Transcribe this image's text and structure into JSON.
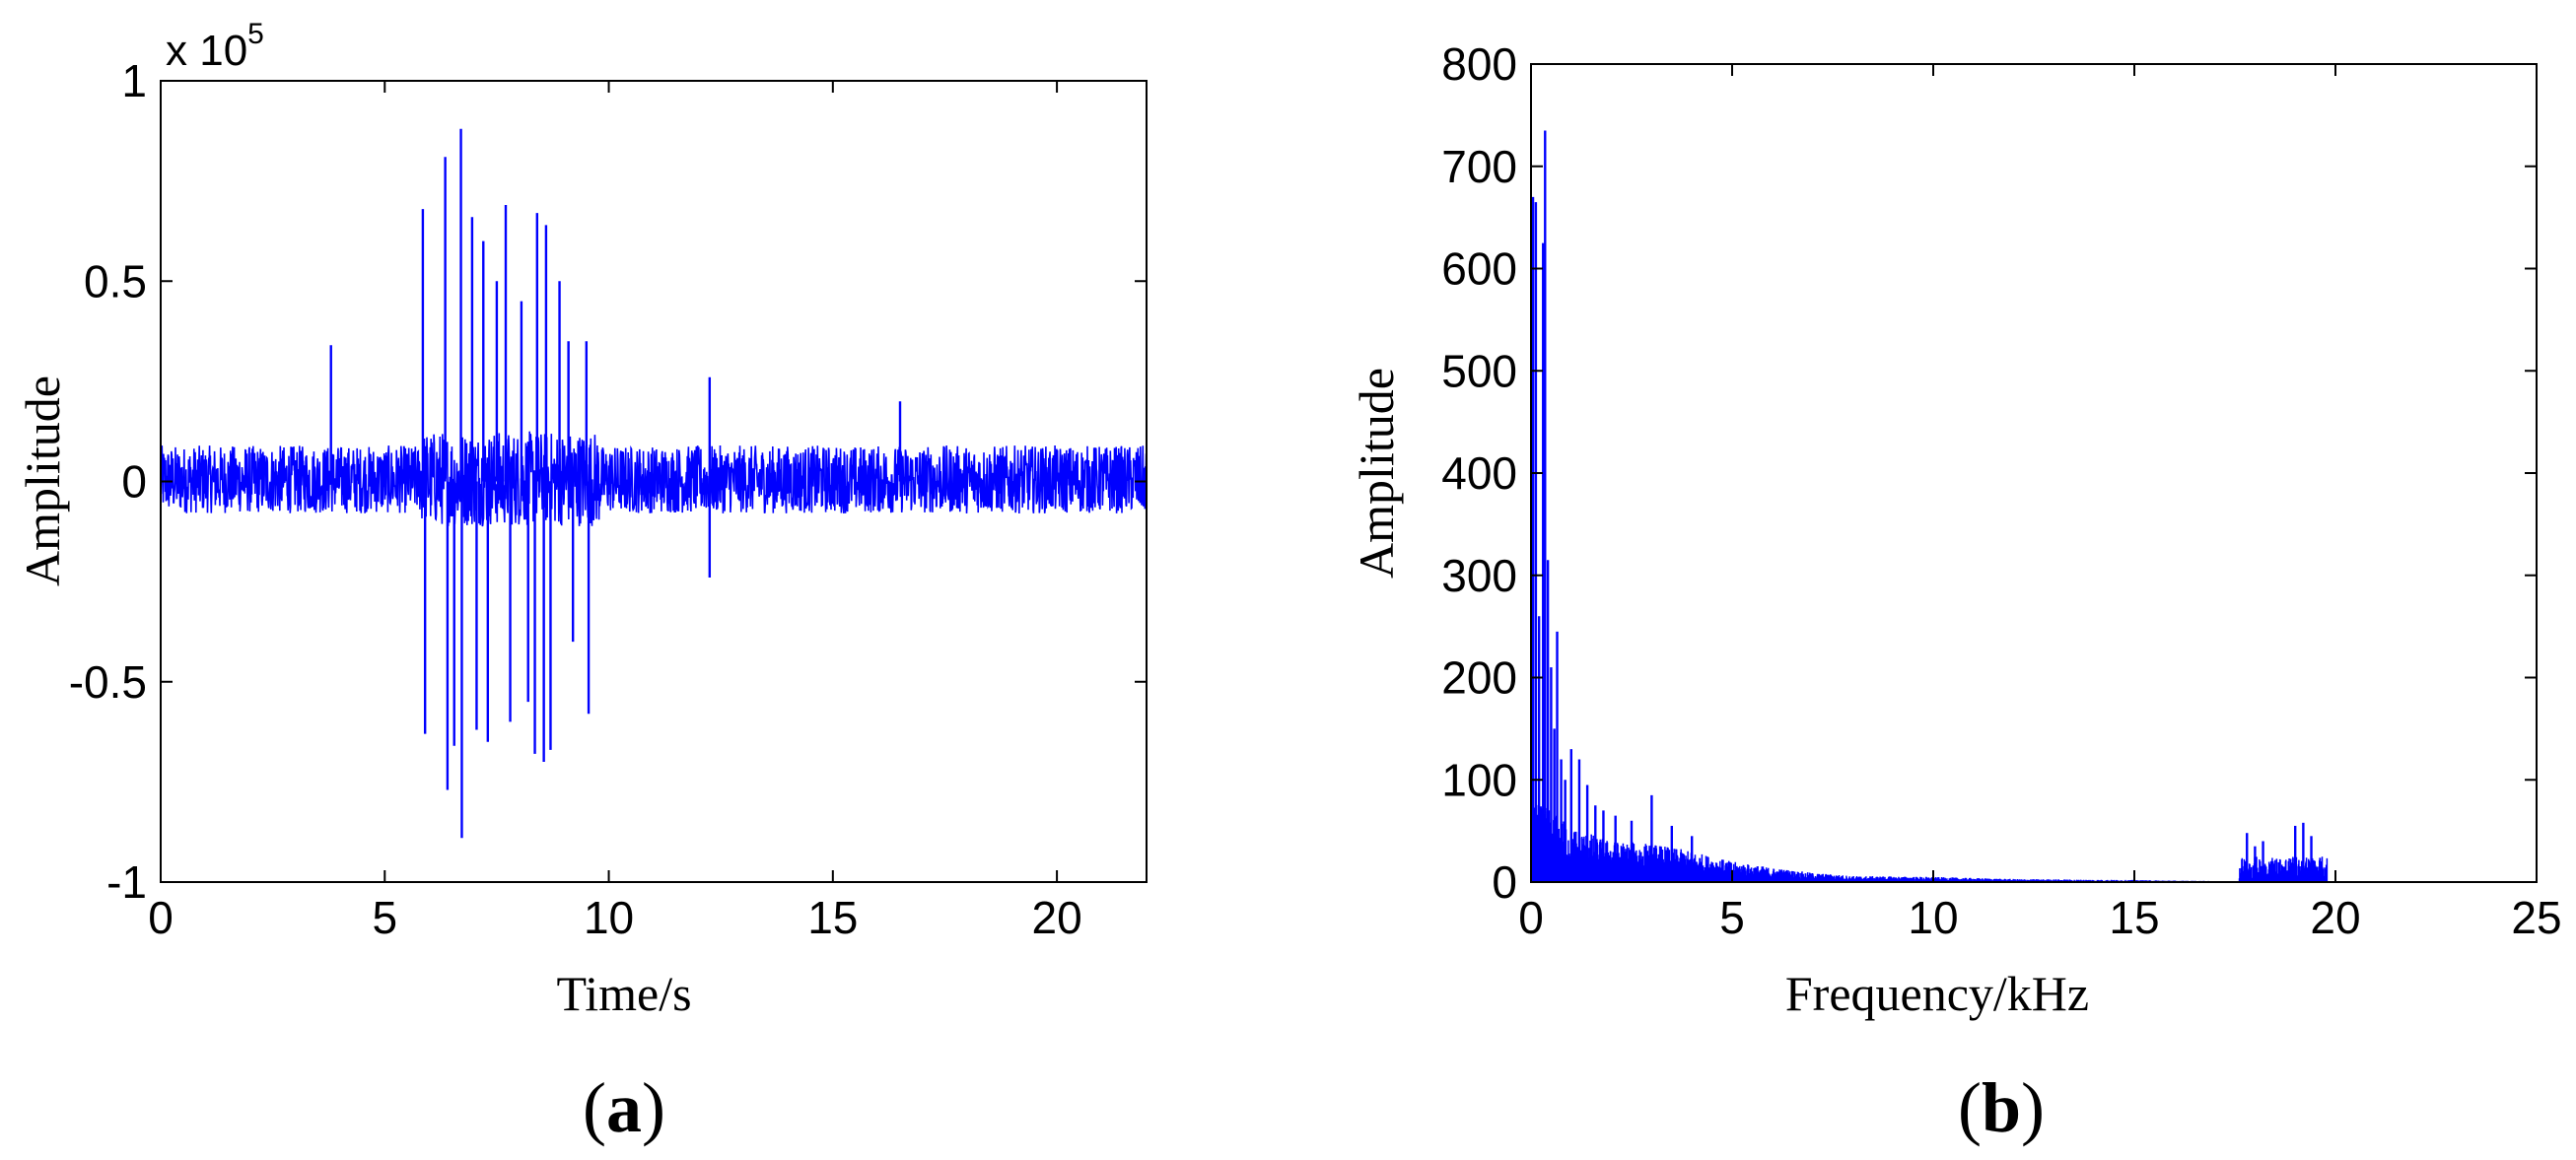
{
  "chart_data": [
    {
      "id": "a",
      "type": "line",
      "panel_label": "a",
      "title": "",
      "xlabel": "Time/s",
      "ylabel": "Amplitude",
      "y_multiplier_label": "x 10",
      "y_multiplier_exponent": "5",
      "xlim": [
        0,
        22
      ],
      "ylim": [
        -1,
        1
      ],
      "xticks": [
        0,
        5,
        10,
        15,
        20
      ],
      "yticks": [
        -1,
        -0.5,
        0,
        0.5,
        1
      ],
      "xtick_labels": [
        "0",
        "5",
        "10",
        "15",
        "20"
      ],
      "ytick_labels": [
        "-1",
        "-0.5",
        "0",
        "0.5",
        "1"
      ],
      "grid": false,
      "color": "#0000ff",
      "series": [
        {
          "noise_band": [
            -0.08,
            0.09
          ],
          "spikes": [
            {
              "x": 3.8,
              "y": 0.34
            },
            {
              "x": 5.85,
              "y": 0.68
            },
            {
              "x": 5.9,
              "y": -0.63
            },
            {
              "x": 6.35,
              "y": 0.81
            },
            {
              "x": 6.4,
              "y": -0.77
            },
            {
              "x": 6.55,
              "y": -0.66
            },
            {
              "x": 6.7,
              "y": 0.88
            },
            {
              "x": 6.72,
              "y": -0.89
            },
            {
              "x": 6.95,
              "y": 0.66
            },
            {
              "x": 7.05,
              "y": -0.62
            },
            {
              "x": 7.2,
              "y": 0.6
            },
            {
              "x": 7.3,
              "y": -0.65
            },
            {
              "x": 7.5,
              "y": 0.5
            },
            {
              "x": 7.7,
              "y": 0.69
            },
            {
              "x": 7.8,
              "y": -0.6
            },
            {
              "x": 8.05,
              "y": 0.45
            },
            {
              "x": 8.2,
              "y": -0.55
            },
            {
              "x": 8.35,
              "y": -0.68
            },
            {
              "x": 8.4,
              "y": 0.67
            },
            {
              "x": 8.55,
              "y": -0.7
            },
            {
              "x": 8.6,
              "y": 0.64
            },
            {
              "x": 8.7,
              "y": -0.67
            },
            {
              "x": 8.9,
              "y": 0.5
            },
            {
              "x": 9.1,
              "y": 0.35
            },
            {
              "x": 9.2,
              "y": -0.4
            },
            {
              "x": 9.5,
              "y": 0.35
            },
            {
              "x": 9.55,
              "y": -0.58
            },
            {
              "x": 12.25,
              "y": 0.26
            },
            {
              "x": 12.25,
              "y": -0.24
            },
            {
              "x": 16.5,
              "y": 0.2
            }
          ]
        }
      ]
    },
    {
      "id": "b",
      "type": "line",
      "panel_label": "b",
      "title": "",
      "xlabel": "Frequency/kHz",
      "ylabel": "Amplitude",
      "xlim": [
        0,
        25
      ],
      "ylim": [
        0,
        800
      ],
      "xticks": [
        0,
        5,
        10,
        15,
        20,
        25
      ],
      "yticks": [
        0,
        100,
        200,
        300,
        400,
        500,
        600,
        700,
        800
      ],
      "xtick_labels": [
        "0",
        "5",
        "10",
        "15",
        "20",
        "25"
      ],
      "ytick_labels": [
        "0",
        "100",
        "200",
        "300",
        "400",
        "500",
        "600",
        "700",
        "800"
      ],
      "grid": false,
      "color": "#0000ff",
      "series": [
        {
          "envelope": [
            {
              "x": 0,
              "y": 80
            },
            {
              "x": 0.5,
              "y": 70
            },
            {
              "x": 1.0,
              "y": 55
            },
            {
              "x": 2.0,
              "y": 40
            },
            {
              "x": 3.0,
              "y": 38
            },
            {
              "x": 4.0,
              "y": 30
            },
            {
              "x": 5.0,
              "y": 20
            },
            {
              "x": 6.0,
              "y": 14
            },
            {
              "x": 7.0,
              "y": 9
            },
            {
              "x": 8.0,
              "y": 6
            },
            {
              "x": 10.0,
              "y": 5
            },
            {
              "x": 12.0,
              "y": 3
            },
            {
              "x": 15.0,
              "y": 2
            },
            {
              "x": 17.0,
              "y": 1
            },
            {
              "x": 20.0,
              "y": 0.5
            },
            {
              "x": 22.0,
              "y": 0
            }
          ],
          "peaks": [
            {
              "x": 0.05,
              "y": 670
            },
            {
              "x": 0.12,
              "y": 665
            },
            {
              "x": 0.2,
              "y": 260
            },
            {
              "x": 0.3,
              "y": 625
            },
            {
              "x": 0.35,
              "y": 735
            },
            {
              "x": 0.42,
              "y": 315
            },
            {
              "x": 0.5,
              "y": 210
            },
            {
              "x": 0.58,
              "y": 150
            },
            {
              "x": 0.65,
              "y": 245
            },
            {
              "x": 0.75,
              "y": 120
            },
            {
              "x": 0.85,
              "y": 100
            },
            {
              "x": 1.0,
              "y": 130
            },
            {
              "x": 1.2,
              "y": 120
            },
            {
              "x": 1.4,
              "y": 95
            },
            {
              "x": 1.6,
              "y": 75
            },
            {
              "x": 1.8,
              "y": 70
            },
            {
              "x": 2.1,
              "y": 65
            },
            {
              "x": 2.5,
              "y": 60
            },
            {
              "x": 3.0,
              "y": 85
            },
            {
              "x": 3.5,
              "y": 55
            },
            {
              "x": 4.0,
              "y": 45
            },
            {
              "x": 17.8,
              "y": 48
            },
            {
              "x": 18.0,
              "y": 35
            },
            {
              "x": 18.2,
              "y": 40
            },
            {
              "x": 19.0,
              "y": 55
            },
            {
              "x": 19.2,
              "y": 58
            },
            {
              "x": 19.4,
              "y": 45
            }
          ]
        }
      ]
    }
  ]
}
